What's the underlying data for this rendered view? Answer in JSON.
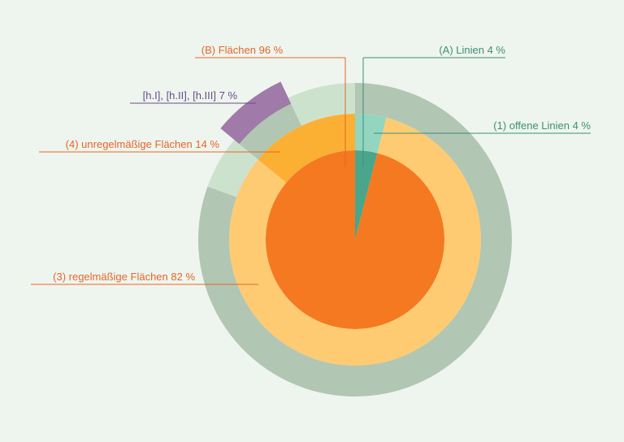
{
  "chart_data": {
    "type": "sunburst",
    "rings": [
      {
        "segments": [
          {
            "label": "(A) Linien 4 %",
            "value": 4,
            "color": "#4aa58a"
          },
          {
            "label": "(B) Flächen 96 %",
            "value": 96,
            "color": "#f47920"
          }
        ]
      },
      {
        "segments": [
          {
            "label": "(1) offene Linien 4 %",
            "value": 4,
            "color": "#93d5c0"
          },
          {
            "label": "(3) regelmäßige Flächen 82 %",
            "value": 82,
            "color": "#ffcb72"
          },
          {
            "label": "(4) unregelmäßige Flächen 14 %",
            "value": 14,
            "color": "#fbb034"
          }
        ]
      },
      {
        "segments": [
          {
            "value": 80.5,
            "color": "#b1c6b3"
          },
          {
            "value": 5.5,
            "color": "#cde2cd"
          },
          {
            "label": "[h.I], [h.II], [h.III] 7 %",
            "value": 7,
            "color": "#a07aa8",
            "raised": true
          },
          {
            "value": 7,
            "color": "#cde2cd"
          }
        ]
      }
    ]
  }
}
